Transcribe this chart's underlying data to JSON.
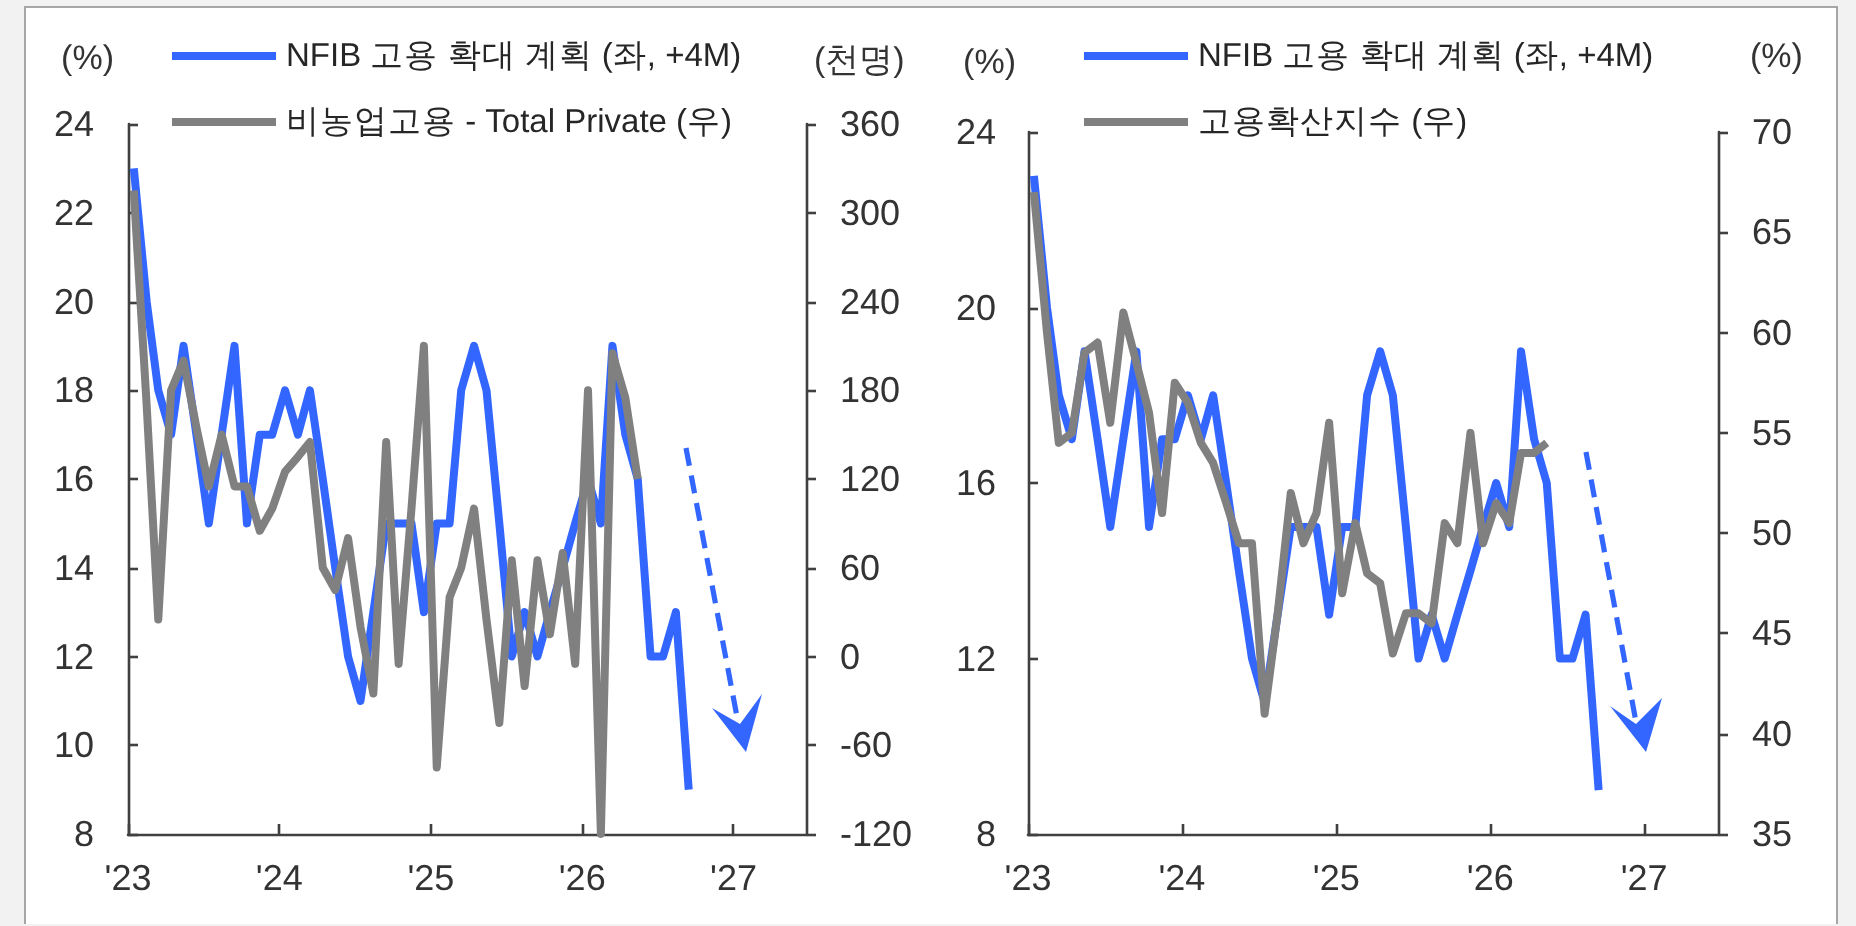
{
  "chart_data": [
    {
      "type": "line",
      "ylabel": "(%)",
      "y2label": "(천명)",
      "legend": "top",
      "x": [
        "2023-01-15",
        "2023-02-15",
        "2023-03-15",
        "2023-04-15",
        "2023-05-15",
        "2023-06-15",
        "2023-07-15",
        "2023-08-15",
        "2023-09-15",
        "2023-10-15",
        "2023-11-15",
        "2023-12-15",
        "2024-01-15",
        "2024-02-15",
        "2024-03-15",
        "2024-04-15",
        "2024-05-15",
        "2024-06-15",
        "2024-07-15",
        "2024-08-15",
        "2024-09-15",
        "2024-10-15",
        "2024-11-15",
        "2024-12-15",
        "2025-01-15",
        "2025-02-15",
        "2025-03-15",
        "2025-04-15",
        "2025-05-15",
        "2025-06-15",
        "2025-07-15",
        "2025-08-15",
        "2025-09-15",
        "2025-10-15",
        "2025-11-15",
        "2025-12-15",
        "2026-01-15",
        "2026-02-15",
        "2026-03-15",
        "2026-04-15",
        "2026-05-15",
        "2026-06-15",
        "2026-07-15",
        "2026-08-15",
        "2026-09-15"
      ],
      "xlim": [
        "2023",
        "2027-06-25"
      ],
      "xticks": [
        {
          "value": "2023",
          "label": "'23"
        },
        {
          "value": "2024",
          "label": "'24"
        },
        {
          "value": "2025",
          "label": "'25"
        },
        {
          "value": "2026",
          "label": "'26"
        },
        {
          "value": "2027",
          "label": "'27"
        }
      ],
      "ylim": [
        8,
        24
      ],
      "yticks": [
        8,
        10,
        12,
        14,
        16,
        18,
        20,
        22,
        24
      ],
      "y2lim": [
        -120,
        360
      ],
      "y2ticks": [
        -120,
        -60,
        0,
        60,
        120,
        180,
        240,
        300,
        360
      ],
      "series": [
        {
          "name": "NFIB 고용 확대 계획 (좌, +4M)",
          "color": "#3366ff",
          "values": [
            23,
            20,
            18,
            17,
            19,
            17,
            15,
            17,
            19,
            15,
            17,
            17,
            18,
            17,
            18,
            16,
            14,
            12,
            11,
            13,
            15,
            15,
            15,
            13,
            15,
            15,
            18,
            19,
            18,
            15,
            12,
            13,
            12,
            13,
            14,
            15,
            16,
            15,
            19,
            17,
            16,
            12,
            12,
            13,
            9
          ]
        },
        {
          "name": "비농업고용 - Total Private (우)",
          "color": "#808080",
          "axis": "y2",
          "values": [
            315,
            170,
            25,
            180,
            200,
            155,
            115,
            150,
            115,
            115,
            85,
            100,
            125,
            135,
            145,
            60,
            45,
            80,
            20,
            -25,
            145,
            -5,
            100,
            210,
            -75,
            40,
            60,
            100,
            25,
            -45,
            65,
            -20,
            65,
            15,
            70,
            -5,
            180,
            -120,
            205,
            175,
            120,
            null,
            null,
            null,
            null
          ]
        }
      ]
    },
    {
      "type": "line",
      "ylabel": "(%)",
      "y2label": "(%)",
      "legend": "top",
      "x": [
        "2023-01-15",
        "2023-02-15",
        "2023-03-15",
        "2023-04-15",
        "2023-05-15",
        "2023-06-15",
        "2023-07-15",
        "2023-08-15",
        "2023-09-15",
        "2023-10-15",
        "2023-11-15",
        "2023-12-15",
        "2024-01-15",
        "2024-02-15",
        "2024-03-15",
        "2024-04-15",
        "2024-05-15",
        "2024-06-15",
        "2024-07-15",
        "2024-08-15",
        "2024-09-15",
        "2024-10-15",
        "2024-11-15",
        "2024-12-15",
        "2025-01-15",
        "2025-02-15",
        "2025-03-15",
        "2025-04-15",
        "2025-05-15",
        "2025-06-15",
        "2025-07-15",
        "2025-08-15",
        "2025-09-15",
        "2025-10-15",
        "2025-11-15",
        "2025-12-15",
        "2026-01-15",
        "2026-02-15",
        "2026-03-15",
        "2026-04-15",
        "2026-05-15",
        "2026-06-15",
        "2026-07-15",
        "2026-08-15",
        "2026-09-15"
      ],
      "xlim": [
        "2023",
        "2027-06-25"
      ],
      "xticks": [
        {
          "value": "2023",
          "label": "'23"
        },
        {
          "value": "2024",
          "label": "'24"
        },
        {
          "value": "2025",
          "label": "'25"
        },
        {
          "value": "2026",
          "label": "'26"
        },
        {
          "value": "2027",
          "label": "'27"
        }
      ],
      "ylim": [
        8,
        24
      ],
      "yticks": [
        8,
        12,
        16,
        20,
        24
      ],
      "y2lim": [
        35,
        70
      ],
      "y2ticks": [
        35,
        40,
        45,
        50,
        55,
        60,
        65,
        70
      ],
      "series": [
        {
          "name": "NFIB 고용 확대 계획 (좌, +4M)",
          "color": "#3366ff",
          "values": [
            23,
            20,
            18,
            17,
            19,
            17,
            15,
            17,
            19,
            15,
            17,
            17,
            18,
            17,
            18,
            16,
            14,
            12,
            11,
            13,
            15,
            15,
            15,
            13,
            15,
            15,
            18,
            19,
            18,
            15,
            12,
            13,
            12,
            13,
            14,
            15,
            16,
            15,
            19,
            17,
            16,
            12,
            12,
            13,
            9
          ]
        },
        {
          "name": "고용확산지수 (우)",
          "color": "#808080",
          "axis": "y2",
          "values": [
            67,
            60,
            54.5,
            55,
            59,
            59.5,
            55.5,
            61,
            58.5,
            56,
            51,
            57.5,
            56.5,
            54.5,
            53.5,
            51.5,
            49.5,
            49.5,
            41,
            46,
            52,
            49.5,
            51,
            55.5,
            47,
            50.5,
            48,
            47.5,
            44,
            46,
            46,
            45.5,
            50.5,
            49.5,
            55,
            49.5,
            51.5,
            50.5,
            54,
            54,
            54.5,
            null,
            null,
            null,
            null
          ]
        }
      ]
    }
  ]
}
